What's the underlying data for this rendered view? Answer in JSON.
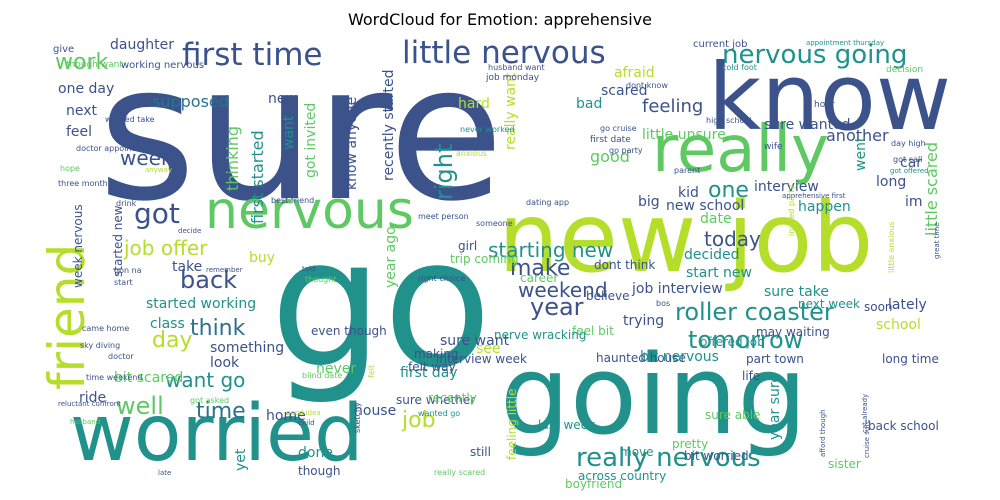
{
  "title": "WordCloud for Emotion: apprehensive",
  "palette": [
    "#440154",
    "#3b528b",
    "#21918c",
    "#5ec962",
    "#b5de2b",
    "#fde725",
    "#2c728e",
    "#35b779"
  ],
  "words": [
    {
      "t": "sure",
      "c": "#3b528b"
    },
    {
      "t": "go",
      "c": "#21918c"
    },
    {
      "t": "going",
      "c": "#21918c"
    },
    {
      "t": "new job",
      "c": "#b5de2b"
    },
    {
      "t": "know",
      "c": "#3b528b"
    },
    {
      "t": "worried",
      "c": "#21918c"
    },
    {
      "t": "really",
      "c": "#5ec962"
    },
    {
      "t": "nervous",
      "c": "#5ec962"
    },
    {
      "t": "friend",
      "c": "#b5de2b"
    },
    {
      "t": "first time",
      "c": "#3b528b"
    },
    {
      "t": "little nervous",
      "c": "#3b528b"
    },
    {
      "t": "nervous going",
      "c": "#21918c"
    },
    {
      "t": "really nervous",
      "c": "#21918c"
    },
    {
      "t": "roller coaster",
      "c": "#21918c"
    },
    {
      "t": "tomorrow",
      "c": "#21918c"
    },
    {
      "t": "work",
      "c": "#5ec962"
    },
    {
      "t": "back",
      "c": "#3b528b"
    },
    {
      "t": "year",
      "c": "#3b528b"
    },
    {
      "t": "got",
      "c": "#3b528b"
    },
    {
      "t": "starting new",
      "c": "#21918c"
    },
    {
      "t": "week",
      "c": "#3b528b"
    },
    {
      "t": "day",
      "c": "#b5de2b"
    },
    {
      "t": "well",
      "c": "#5ec962"
    },
    {
      "t": "want go",
      "c": "#21918c"
    },
    {
      "t": "think",
      "c": "#2c728e"
    },
    {
      "t": "time",
      "c": "#2c728e"
    },
    {
      "t": "job offer",
      "c": "#b5de2b"
    },
    {
      "t": "today",
      "c": "#3b528b"
    },
    {
      "t": "weekend",
      "c": "#3b528b"
    },
    {
      "t": "make",
      "c": "#3b528b"
    },
    {
      "t": "right",
      "c": "#21918c"
    },
    {
      "t": "one",
      "c": "#21918c"
    },
    {
      "t": "job",
      "c": "#b5de2b"
    },
    {
      "t": "daughter",
      "c": "#3b528b"
    },
    {
      "t": "supposed",
      "c": "#2c728e"
    },
    {
      "t": "scared",
      "c": "#3b528b"
    },
    {
      "t": "feeling",
      "c": "#3b528b"
    },
    {
      "t": "sure wanted",
      "c": "#3b528b"
    },
    {
      "t": "afraid",
      "c": "#b5de2b"
    },
    {
      "t": "little unsure",
      "c": "#5ec962"
    },
    {
      "t": "another",
      "c": "#3b528b"
    },
    {
      "t": "interview",
      "c": "#3b528b"
    },
    {
      "t": "kid",
      "c": "#3b528b"
    },
    {
      "t": "good",
      "c": "#5ec962"
    },
    {
      "t": "bad",
      "c": "#21918c"
    },
    {
      "t": "hard",
      "c": "#b5de2b"
    },
    {
      "t": "really want",
      "c": "#b5de2b"
    },
    {
      "t": "got invited",
      "c": "#5ec962"
    },
    {
      "t": "recently started",
      "c": "#3b528b"
    },
    {
      "t": "know anyone",
      "c": "#3b528b"
    },
    {
      "t": "first started",
      "c": "#21918c"
    },
    {
      "t": "want",
      "c": "#21918c"
    },
    {
      "t": "thinking",
      "c": "#5ec962"
    },
    {
      "t": "new",
      "c": "#3b528b"
    },
    {
      "t": "feel",
      "c": "#3b528b"
    },
    {
      "t": "next",
      "c": "#3b528b"
    },
    {
      "t": "one day",
      "c": "#3b528b"
    },
    {
      "t": "long",
      "c": "#3b528b"
    },
    {
      "t": "car",
      "c": "#3b528b"
    },
    {
      "t": "im",
      "c": "#3b528b"
    },
    {
      "t": "new school",
      "c": "#3b528b"
    },
    {
      "t": "happen",
      "c": "#21918c"
    },
    {
      "t": "date",
      "c": "#5ec962"
    },
    {
      "t": "big",
      "c": "#3b528b"
    },
    {
      "t": "decided",
      "c": "#21918c"
    },
    {
      "t": "start new",
      "c": "#21918c"
    },
    {
      "t": "job interview",
      "c": "#3b528b"
    },
    {
      "t": "sure take",
      "c": "#21918c"
    },
    {
      "t": "little scared",
      "c": "#5ec962"
    },
    {
      "t": "went",
      "c": "#21918c"
    },
    {
      "t": "year ago",
      "c": "#5ec962"
    },
    {
      "t": "trying",
      "c": "#3b528b"
    },
    {
      "t": "sure want",
      "c": "#3b528b"
    },
    {
      "t": "bit nervous",
      "c": "#21918c"
    },
    {
      "t": "first day",
      "c": "#21918c"
    },
    {
      "t": "see",
      "c": "#b5de2b"
    },
    {
      "t": "year sure",
      "c": "#21918c"
    },
    {
      "t": "lately",
      "c": "#3b528b"
    },
    {
      "t": "school",
      "c": "#b5de2b"
    },
    {
      "t": "started working",
      "c": "#21918c"
    },
    {
      "t": "class",
      "c": "#21918c"
    },
    {
      "t": "something",
      "c": "#3b528b"
    },
    {
      "t": "bit scared",
      "c": "#5ec962"
    },
    {
      "t": "look",
      "c": "#3b528b"
    },
    {
      "t": "take",
      "c": "#3b528b"
    },
    {
      "t": "buy",
      "c": "#b5de2b"
    },
    {
      "t": "never",
      "c": "#5ec962"
    },
    {
      "t": "house",
      "c": "#3b528b"
    },
    {
      "t": "home",
      "c": "#3b528b"
    },
    {
      "t": "done",
      "c": "#21918c"
    },
    {
      "t": "yet",
      "c": "#21918c"
    },
    {
      "t": "ride",
      "c": "#3b528b"
    },
    {
      "t": "week nervous",
      "c": "#3b528b"
    },
    {
      "t": "started new",
      "c": "#3b528b"
    },
    {
      "t": "last week",
      "c": "#21918c"
    },
    {
      "t": "across country",
      "c": "#21918c"
    },
    {
      "t": "boyfriend",
      "c": "#5ec962"
    },
    {
      "t": "sister",
      "c": "#5ec962"
    },
    {
      "t": "back school",
      "c": "#3b528b"
    },
    {
      "t": "long time",
      "c": "#3b528b"
    },
    {
      "t": "part town",
      "c": "#3b528b"
    },
    {
      "t": "next week",
      "c": "#21918c"
    },
    {
      "t": "soon",
      "c": "#3b528b"
    },
    {
      "t": "felt way",
      "c": "#3b528b"
    },
    {
      "t": "making",
      "c": "#3b528b"
    },
    {
      "t": "even though",
      "c": "#3b528b"
    },
    {
      "t": "though",
      "c": "#3b528b"
    },
    {
      "t": "career",
      "c": "#5ec962"
    },
    {
      "t": "girl",
      "c": "#3b528b"
    },
    {
      "t": "trip coming",
      "c": "#5ec962"
    },
    {
      "t": "dont think",
      "c": "#3b528b"
    },
    {
      "t": "believe",
      "c": "#3b528b"
    },
    {
      "t": "feel bit",
      "c": "#5ec962"
    },
    {
      "t": "interview week",
      "c": "#3b528b"
    },
    {
      "t": "nerve wracking",
      "c": "#21918c"
    },
    {
      "t": "haunted house",
      "c": "#3b528b"
    },
    {
      "t": "may waiting",
      "c": "#3b528b"
    },
    {
      "t": "offered job",
      "c": "#21918c"
    },
    {
      "t": "sure whether",
      "c": "#3b528b"
    },
    {
      "t": "recently",
      "c": "#5ec962"
    },
    {
      "t": "feeling little",
      "c": "#b5de2b"
    },
    {
      "t": "still",
      "c": "#3b528b"
    },
    {
      "t": "pretty",
      "c": "#5ec962"
    },
    {
      "t": "bit worried",
      "c": "#3b528b"
    },
    {
      "t": "move",
      "c": "#21918c"
    },
    {
      "t": "life",
      "c": "#3b528b"
    },
    {
      "t": "sure able",
      "c": "#5ec962"
    },
    {
      "t": "working nervous",
      "c": "#3b528b"
    },
    {
      "t": "give",
      "c": "#3b528b"
    },
    {
      "t": "though want",
      "c": "#5ec962"
    },
    {
      "t": "current job",
      "c": "#3b528b"
    },
    {
      "t": "appointment thursday",
      "c": "#21918c"
    },
    {
      "t": "cold foot",
      "c": "#21918c"
    },
    {
      "t": "decision",
      "c": "#5ec962"
    },
    {
      "t": "job monday",
      "c": "#3b528b"
    },
    {
      "t": "husband want",
      "c": "#3b528b"
    },
    {
      "t": "dont know",
      "c": "#3b528b"
    },
    {
      "t": "high school",
      "c": "#3b528b"
    },
    {
      "t": "hour",
      "c": "#3b528b"
    },
    {
      "t": "first date",
      "c": "#3b528b"
    },
    {
      "t": "go party",
      "c": "#3b528b"
    },
    {
      "t": "go cruise",
      "c": "#3b528b"
    },
    {
      "t": "parent",
      "c": "#3b528b"
    },
    {
      "t": "wife",
      "c": "#3b528b"
    },
    {
      "t": "day high",
      "c": "#3b528b"
    },
    {
      "t": "got call",
      "c": "#3b528b"
    },
    {
      "t": "got offered",
      "c": "#21918c"
    },
    {
      "t": "never worked",
      "c": "#21918c"
    },
    {
      "t": "anxious",
      "c": "#b5de2b"
    },
    {
      "t": "doctor appointment",
      "c": "#3b528b"
    },
    {
      "t": "wanted take",
      "c": "#3b528b"
    },
    {
      "t": "hope",
      "c": "#5ec962"
    },
    {
      "t": "three month",
      "c": "#3b528b"
    },
    {
      "t": "anyway",
      "c": "#b5de2b"
    },
    {
      "t": "drink",
      "c": "#3b528b"
    },
    {
      "t": "decide",
      "c": "#3b528b"
    },
    {
      "t": "best friend",
      "c": "#3b528b"
    },
    {
      "t": "meet person",
      "c": "#3b528b"
    },
    {
      "t": "someone",
      "c": "#3b528b"
    },
    {
      "t": "dating app",
      "c": "#3b528b"
    },
    {
      "t": "apprehensive first",
      "c": "#3b528b"
    },
    {
      "t": "invited party",
      "c": "#b5de2b"
    },
    {
      "t": "little anxious",
      "c": "#b5de2b"
    },
    {
      "t": "great time",
      "c": "#3b528b"
    },
    {
      "t": "gon na",
      "c": "#3b528b"
    },
    {
      "t": "start",
      "c": "#3b528b"
    },
    {
      "t": "remember",
      "c": "#3b528b"
    },
    {
      "t": "told",
      "c": "#3b528b"
    },
    {
      "t": "thought",
      "c": "#5ec962"
    },
    {
      "t": "right choice",
      "c": "#3b528b"
    },
    {
      "t": "came home",
      "c": "#3b528b"
    },
    {
      "t": "sky diving",
      "c": "#3b528b"
    },
    {
      "t": "doctor",
      "c": "#3b528b"
    },
    {
      "t": "time weekend",
      "c": "#3b528b"
    },
    {
      "t": "reluctant confront",
      "c": "#3b528b"
    },
    {
      "t": "husband",
      "c": "#5ec962"
    },
    {
      "t": "blind date",
      "c": "#5ec962"
    },
    {
      "t": "good idea",
      "c": "#b5de2b"
    },
    {
      "t": "child",
      "c": "#3b528b"
    },
    {
      "t": "sketchy",
      "c": "#3b528b"
    },
    {
      "t": "felt",
      "c": "#b5de2b"
    },
    {
      "t": "really scared",
      "c": "#5ec962"
    },
    {
      "t": "afford though",
      "c": "#3b528b"
    },
    {
      "t": "cruise sure",
      "c": "#3b528b"
    },
    {
      "t": "cat already",
      "c": "#3b528b"
    },
    {
      "t": "late",
      "c": "#3b528b"
    },
    {
      "t": "got asked",
      "c": "#5ec962"
    },
    {
      "t": "wanted go",
      "c": "#21918c"
    },
    {
      "t": "bos",
      "c": "#3b528b"
    },
    {
      "t": "u",
      "c": "#3b528b"
    }
  ]
}
